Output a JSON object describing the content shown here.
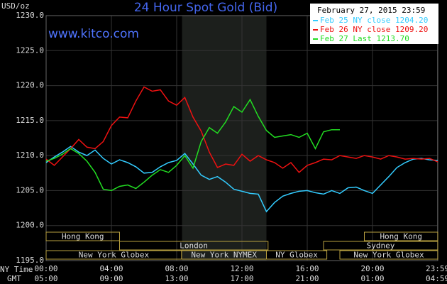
{
  "chart_data": {
    "type": "line",
    "title": "24 Hour Spot Gold (Bid)",
    "date": "February 27, 2015 23:59",
    "watermark": "www.kitco.com",
    "ylabel": "USD/oz",
    "xlabel": "NY Time",
    "x2label": "GMT",
    "x": [
      0,
      0.5,
      1,
      1.5,
      2,
      2.5,
      3,
      3.5,
      4,
      4.5,
      5,
      5.5,
      6,
      6.5,
      7,
      7.5,
      8,
      8.5,
      9,
      9.5,
      10,
      10.5,
      11,
      11.5,
      12,
      12.5,
      13,
      13.5,
      14,
      14.5,
      15,
      15.5,
      16,
      16.5,
      17,
      17.5,
      18,
      18.5,
      19,
      19.5,
      20,
      20.5,
      21,
      21.5,
      22,
      22.5,
      23,
      23.5,
      24
    ],
    "series": [
      {
        "name": "Feb 25 NY close 1204.20",
        "color": "#33ccff",
        "values": [
          1209.0,
          1209.8,
          1210.5,
          1211.3,
          1210.5,
          1210.0,
          1210.8,
          1209.6,
          1208.8,
          1209.4,
          1209.0,
          1208.4,
          1207.5,
          1207.6,
          1208.4,
          1209.0,
          1209.3,
          1210.3,
          1208.8,
          1207.2,
          1206.6,
          1207.0,
          1206.2,
          1205.2,
          1204.9,
          1204.6,
          1204.5,
          1202.0,
          1203.3,
          1204.2,
          1204.6,
          1204.9,
          1205.0,
          1204.7,
          1204.5,
          1205.0,
          1204.6,
          1205.4,
          1205.5,
          1205.0,
          1204.6,
          1205.8,
          1207.0,
          1208.3,
          1209.0,
          1209.5,
          1209.6,
          1209.4,
          1209.3
        ]
      },
      {
        "name": "Feb 26 NY close 1209.20",
        "color": "#ee1111",
        "values": [
          1209.5,
          1208.6,
          1209.8,
          1211.0,
          1212.3,
          1211.2,
          1211.0,
          1212.0,
          1214.3,
          1215.5,
          1215.4,
          1217.8,
          1219.8,
          1219.2,
          1219.4,
          1217.8,
          1217.2,
          1218.3,
          1215.5,
          1213.5,
          1210.5,
          1208.3,
          1208.8,
          1208.6,
          1210.2,
          1209.2,
          1210.0,
          1209.4,
          1209.0,
          1208.2,
          1209.0,
          1207.6,
          1208.6,
          1209.0,
          1209.5,
          1209.4,
          1210.0,
          1209.8,
          1209.6,
          1210.0,
          1209.8,
          1209.5,
          1210.0,
          1209.8,
          1209.5,
          1209.6,
          1209.5,
          1209.6,
          1209.1
        ]
      },
      {
        "name": "Feb 27 Last 1213.70",
        "color": "#22dd22",
        "values": [
          1209.2,
          1209.6,
          1210.2,
          1211.0,
          1210.3,
          1209.2,
          1207.6,
          1205.2,
          1205.0,
          1205.6,
          1205.8,
          1205.3,
          1206.2,
          1207.2,
          1208.0,
          1207.6,
          1208.6,
          1210.0,
          1208.2,
          1212.0,
          1214.0,
          1213.2,
          1214.8,
          1217.0,
          1216.2,
          1218.0,
          1215.6,
          1213.6,
          1212.6,
          1212.8,
          1213.0,
          1212.6,
          1213.2,
          1211.0,
          1213.4,
          1213.7,
          1213.7,
          null,
          null,
          null,
          null,
          null,
          null,
          null,
          null,
          null,
          null,
          null,
          null
        ]
      }
    ],
    "xlim": [
      0,
      24
    ],
    "xticks": [
      {
        "value": 0,
        "label": "00:00"
      },
      {
        "value": 4,
        "label": "04:00"
      },
      {
        "value": 8,
        "label": "08:00"
      },
      {
        "value": 12,
        "label": "12:00"
      },
      {
        "value": 16,
        "label": "16:00"
      },
      {
        "value": 20,
        "label": "20:00"
      },
      {
        "value": 23.98,
        "label": "23:59"
      }
    ],
    "x2ticklabels": [
      "05:00",
      "09:00",
      "13:00",
      "17:00",
      "21:00",
      "01:00",
      "04:59"
    ],
    "ylim": [
      1195,
      1230
    ],
    "yticks": [
      {
        "value": 1195,
        "label": "1195.0"
      },
      {
        "value": 1200,
        "label": "1200.0"
      },
      {
        "value": 1205,
        "label": "1205.0"
      },
      {
        "value": 1210,
        "label": "1210.0"
      },
      {
        "value": 1215,
        "label": "1215.0"
      },
      {
        "value": 1220,
        "label": "1220.0"
      },
      {
        "value": 1225,
        "label": "1225.0"
      },
      {
        "value": 1230,
        "label": "1230.0"
      }
    ],
    "grid": true,
    "highlight": [
      8.33,
      13.5
    ],
    "session_rows": [
      [
        {
          "label": "Hong Kong",
          "start": 0,
          "end": 4.5
        },
        {
          "label": "Hong Kong",
          "start": 19.5,
          "end": 24
        }
      ],
      [
        {
          "label": "London",
          "start": 4.5,
          "end": 13.6
        },
        {
          "label": "Sydney",
          "start": 17,
          "end": 24
        }
      ],
      [
        {
          "label": "New York Globex",
          "start": 0,
          "end": 8.3
        },
        {
          "label": "New York NYMEX",
          "start": 8.3,
          "end": 13.5
        },
        {
          "label": "NY Globex",
          "start": 13.5,
          "end": 17.2
        },
        {
          "label": "New York Globex",
          "start": 18,
          "end": 24
        }
      ]
    ]
  }
}
